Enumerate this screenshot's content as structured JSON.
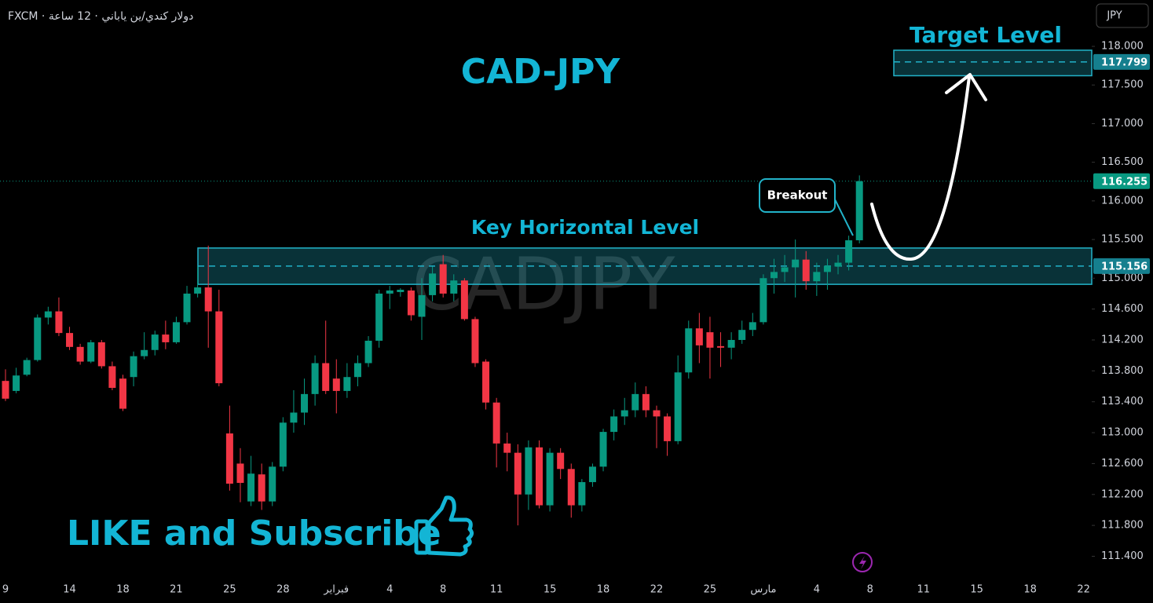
{
  "header": {
    "symbol_line": "FXCM · دولار كندي/ين ياباني · 12 ساعة",
    "currency": "JPY"
  },
  "chart_data": {
    "type": "candlestick",
    "title": "CAD-JPY",
    "watermark": "CADJPY",
    "categories": [
      "9",
      null,
      null,
      null,
      null,
      null,
      "14",
      null,
      null,
      null,
      null,
      "18",
      null,
      null,
      null,
      null,
      "21",
      null,
      null,
      null,
      null,
      "25",
      null,
      null,
      null,
      null,
      "28",
      null,
      null,
      null,
      null,
      "فبراير",
      null,
      null,
      null,
      null,
      "4",
      null,
      null,
      null,
      null,
      "8",
      null,
      null,
      null,
      null,
      "11",
      null,
      null,
      null,
      null,
      "15",
      null,
      null,
      null,
      null,
      "18",
      null,
      null,
      null,
      null,
      "22",
      null,
      null,
      null,
      null,
      "25",
      null,
      null,
      null,
      null,
      "مارس",
      null,
      null,
      null,
      null,
      "4",
      null,
      null,
      null,
      null,
      "8",
      null,
      null,
      null,
      null,
      "11",
      null,
      null,
      null,
      null,
      "15",
      null,
      null,
      null,
      null,
      "18",
      null,
      null,
      null,
      null,
      "22"
    ],
    "open": [
      113.67,
      113.54,
      113.75,
      113.94,
      114.49,
      114.57,
      114.29,
      114.11,
      113.92,
      114.17,
      113.86,
      113.7,
      113.72,
      113.99,
      114.07,
      114.27,
      114.17,
      114.43,
      114.8,
      114.88,
      114.57,
      112.99,
      112.6,
      112.11,
      112.46,
      112.11,
      112.56,
      113.13,
      113.26,
      113.5,
      113.9,
      113.7,
      113.54,
      113.72,
      113.9,
      114.19,
      114.8,
      114.82,
      114.84,
      114.5,
      114.78,
      115.18,
      114.8,
      114.97,
      114.47,
      113.92,
      113.39,
      112.86,
      112.74,
      112.2,
      112.81,
      112.06,
      112.74,
      112.53,
      112.06,
      112.36,
      112.56,
      113.01,
      113.21,
      113.29,
      113.5,
      113.29,
      113.21,
      112.89,
      113.78,
      114.35,
      114.3,
      114.12,
      114.1,
      114.2,
      114.33,
      114.43,
      115.0,
      115.08,
      115.14,
      115.24,
      114.96,
      115.08,
      115.15,
      115.2,
      115.49,
      null,
      null,
      null,
      null,
      null,
      null,
      null,
      null,
      null,
      null,
      null,
      null,
      null,
      null,
      null,
      null,
      null,
      null,
      null,
      null,
      null
    ],
    "high": [
      113.82,
      113.84,
      113.97,
      114.53,
      114.63,
      114.75,
      114.37,
      114.15,
      114.2,
      114.2,
      113.92,
      113.75,
      114.05,
      114.3,
      114.32,
      114.45,
      114.5,
      114.9,
      115.15,
      115.42,
      114.85,
      113.35,
      112.8,
      112.7,
      112.6,
      112.62,
      113.2,
      113.55,
      113.7,
      114.0,
      114.45,
      113.95,
      113.9,
      114.0,
      114.25,
      114.85,
      114.9,
      114.87,
      114.88,
      115.0,
      115.15,
      115.3,
      115.05,
      115.0,
      114.5,
      113.95,
      113.45,
      113.0,
      112.85,
      112.9,
      112.9,
      112.8,
      112.8,
      112.6,
      112.4,
      112.6,
      113.05,
      113.3,
      113.45,
      113.65,
      113.6,
      113.35,
      113.25,
      114.0,
      114.45,
      114.55,
      114.5,
      114.3,
      114.3,
      114.45,
      114.55,
      115.05,
      115.25,
      115.3,
      115.5,
      115.35,
      115.2,
      115.25,
      115.3,
      115.55,
      116.33,
      null,
      null,
      null,
      null,
      null,
      null,
      null,
      null,
      null,
      null,
      null,
      null,
      null,
      null,
      null,
      null,
      null,
      null,
      null,
      null,
      null
    ],
    "low": [
      113.41,
      113.51,
      113.73,
      113.92,
      114.4,
      114.25,
      114.07,
      113.88,
      113.9,
      113.83,
      113.55,
      113.28,
      113.6,
      113.95,
      114.0,
      114.08,
      114.15,
      114.4,
      114.75,
      114.1,
      113.6,
      112.25,
      112.1,
      112.05,
      112.0,
      112.05,
      112.5,
      113.0,
      113.1,
      113.35,
      113.5,
      113.25,
      113.45,
      113.6,
      113.85,
      114.1,
      114.6,
      114.76,
      114.45,
      114.2,
      114.7,
      114.75,
      114.7,
      114.45,
      113.85,
      113.3,
      112.55,
      112.5,
      111.8,
      112.0,
      112.02,
      111.98,
      112.4,
      111.9,
      111.98,
      112.3,
      112.5,
      112.9,
      113.1,
      113.2,
      113.2,
      112.8,
      112.7,
      112.85,
      113.7,
      113.9,
      113.7,
      113.85,
      113.95,
      114.15,
      114.25,
      114.4,
      114.8,
      114.95,
      114.75,
      114.85,
      114.77,
      114.85,
      115.05,
      115.1,
      115.45,
      null,
      null,
      null,
      null,
      null,
      null,
      null,
      null,
      null,
      null,
      null,
      null,
      null,
      null,
      null,
      null,
      null,
      null,
      null,
      null,
      null
    ],
    "close": [
      113.44,
      113.74,
      113.94,
      114.49,
      114.57,
      114.29,
      114.11,
      113.92,
      114.17,
      113.86,
      113.58,
      113.31,
      113.99,
      114.07,
      114.27,
      114.17,
      114.43,
      114.8,
      114.88,
      114.57,
      113.64,
      112.34,
      112.35,
      112.47,
      112.11,
      112.56,
      113.13,
      113.26,
      113.5,
      113.9,
      113.54,
      113.54,
      113.72,
      113.9,
      114.19,
      114.8,
      114.84,
      114.85,
      114.52,
      114.78,
      115.06,
      114.8,
      114.97,
      114.47,
      113.9,
      113.39,
      112.86,
      112.74,
      112.2,
      112.81,
      112.06,
      112.74,
      112.53,
      112.06,
      112.36,
      112.56,
      113.01,
      113.21,
      113.29,
      113.5,
      113.29,
      113.21,
      112.89,
      113.78,
      114.35,
      114.13,
      114.1,
      114.1,
      114.2,
      114.33,
      114.43,
      115.0,
      115.08,
      115.14,
      115.24,
      114.96,
      115.08,
      115.16,
      115.2,
      115.49,
      116.255,
      null,
      null,
      null,
      null,
      null,
      null,
      null,
      null,
      null,
      null,
      null,
      null,
      null,
      null,
      null,
      null,
      null,
      null,
      null,
      null,
      null
    ],
    "up_color": "#089981",
    "down_color": "#f23645",
    "ylim": [
      111.08,
      118.6
    ],
    "yticks": [
      {
        "value": 118,
        "label": "118.000"
      },
      {
        "value": 117.5,
        "label": "117.500"
      },
      {
        "value": 117,
        "label": "117.000"
      },
      {
        "value": 116.5,
        "label": "116.500"
      },
      {
        "value": 116,
        "label": "116.000"
      },
      {
        "value": 115.5,
        "label": "115.500"
      },
      {
        "value": 115,
        "label": "115.000"
      },
      {
        "value": 114.6,
        "label": "114.600"
      },
      {
        "value": 114.2,
        "label": "114.200"
      },
      {
        "value": 113.8,
        "label": "113.800"
      },
      {
        "value": 113.4,
        "label": "113.400"
      },
      {
        "value": 113,
        "label": "113.000"
      },
      {
        "value": 112.6,
        "label": "112.600"
      },
      {
        "value": 112.2,
        "label": "112.200"
      },
      {
        "value": 111.8,
        "label": "111.800"
      },
      {
        "value": 111.4,
        "label": "111.400"
      }
    ],
    "grid": false,
    "zones": [
      {
        "name": "Key Horizontal Level",
        "top": 115.39,
        "bottom": 114.92,
        "level": 115.156,
        "color": "#22b3c9"
      },
      {
        "name": "Target Level",
        "top": 117.95,
        "bottom": 117.62,
        "level": 117.799,
        "color": "#22b3c9"
      }
    ],
    "annotations": {
      "breakout": "Breakout",
      "cta": "LIKE and Subscribe"
    }
  }
}
